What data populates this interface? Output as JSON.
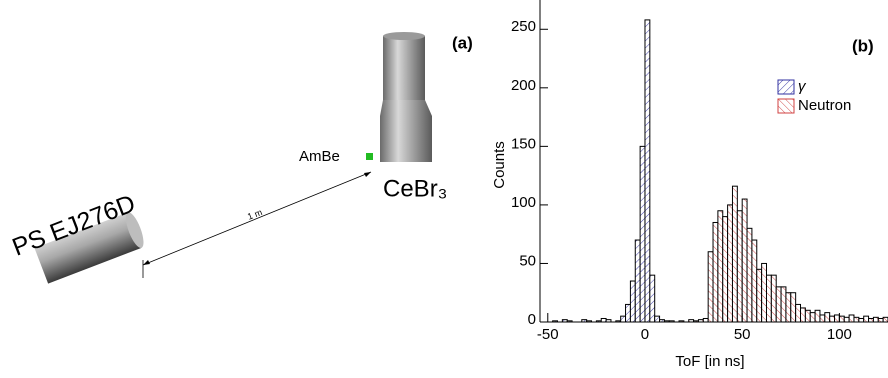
{
  "diagram": {
    "panel_label": "(a)",
    "source_label": "AmBe",
    "detector_1": "CeBr₃",
    "detector_2": "PS EJ276D",
    "distance": "1 m"
  },
  "chart_data": {
    "type": "histogram",
    "panel_label": "(b)",
    "x_label": "ToF [in ns]",
    "y_label": "Counts",
    "bins": [
      -50,
      -47.5,
      -45,
      -42.5,
      -40,
      -37.5,
      -35,
      -32.5,
      -30,
      -27.5,
      -25,
      -22.5,
      -20,
      -17.5,
      -15,
      -12.5,
      -10,
      -7.5,
      -5,
      -2.5,
      0,
      2.5,
      5,
      7.5,
      10,
      12.5,
      15,
      17.5,
      20,
      22.5,
      25,
      27.5,
      30,
      32.5,
      35,
      37.5,
      40,
      42.5,
      45,
      47.5,
      50,
      52.5,
      55,
      57.5,
      60,
      62.5,
      65,
      67.5,
      70,
      72.5,
      75,
      77.5,
      80,
      82.5,
      85,
      87.5,
      90,
      92.5,
      95,
      97.5,
      100,
      102.5,
      105,
      107.5,
      110,
      112.5,
      115,
      117.5,
      120,
      122.5,
      125
    ],
    "series": [
      {
        "name": "γ",
        "color": "#3030a0",
        "values": [
          0,
          1,
          0,
          2,
          1,
          0,
          0,
          2,
          1,
          0,
          1,
          3,
          2,
          0,
          1,
          5,
          15,
          35,
          70,
          150,
          258,
          40,
          5,
          2,
          1,
          0,
          0,
          0,
          0,
          0,
          0,
          0,
          0,
          0,
          0,
          0,
          0,
          0,
          0,
          0,
          0,
          0,
          0,
          0,
          0,
          0,
          0,
          0,
          0,
          0,
          0,
          0,
          0,
          0,
          0,
          0,
          0,
          0,
          0,
          0,
          0,
          0,
          0,
          0,
          0,
          0,
          0,
          0,
          0,
          0
        ]
      },
      {
        "name": "Neutron",
        "color": "#d04040",
        "values": [
          0,
          0,
          0,
          0,
          0,
          0,
          0,
          0,
          0,
          0,
          0,
          0,
          0,
          0,
          0,
          0,
          0,
          0,
          0,
          0,
          0,
          0,
          0,
          0,
          0,
          1,
          0,
          1,
          0,
          2,
          1,
          2,
          3,
          60,
          85,
          95,
          90,
          100,
          116,
          95,
          105,
          80,
          70,
          45,
          50,
          40,
          40,
          30,
          30,
          25,
          25,
          15,
          12,
          10,
          8,
          10,
          6,
          8,
          5,
          6,
          5,
          4,
          6,
          4,
          3,
          5,
          3,
          4,
          3,
          4
        ]
      }
    ],
    "xlim": [
      -54,
      125
    ],
    "ylim": [
      0,
      275
    ],
    "xticks": [
      -50,
      0,
      50,
      100
    ],
    "yticks": [
      0,
      50,
      100,
      150,
      200,
      250
    ]
  }
}
